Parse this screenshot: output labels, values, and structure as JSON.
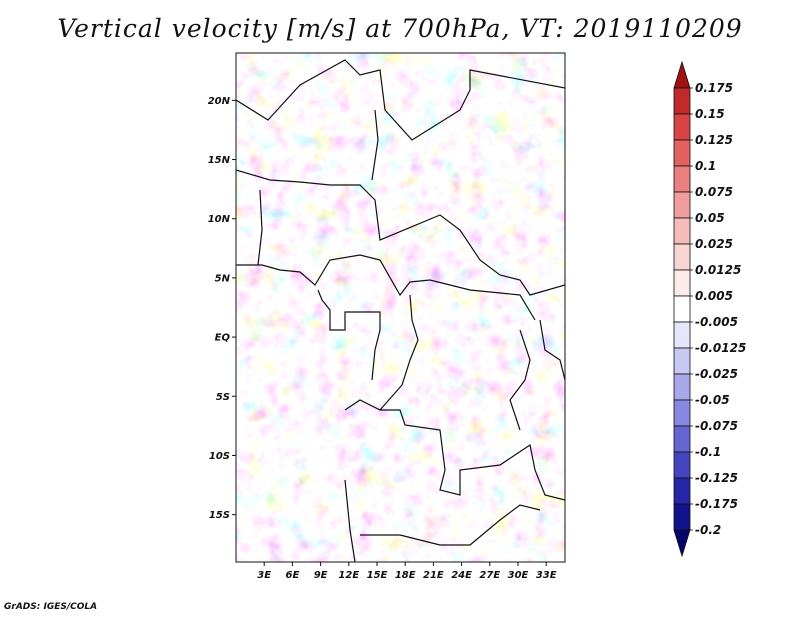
{
  "title": "Vertical velocity [m/s] at 700hPa, VT: 2019110209",
  "credit": "GrADS: IGES/COLA",
  "map": {
    "lon_range": [
      0,
      35
    ],
    "lat_range": [
      -19,
      24
    ],
    "lat_ticks": [
      {
        "value": 20,
        "label": "20N"
      },
      {
        "value": 15,
        "label": "15N"
      },
      {
        "value": 10,
        "label": "10N"
      },
      {
        "value": 5,
        "label": "5N"
      },
      {
        "value": 0,
        "label": "EQ"
      },
      {
        "value": -5,
        "label": "5S"
      },
      {
        "value": -10,
        "label": "10S"
      },
      {
        "value": -15,
        "label": "15S"
      }
    ],
    "lon_ticks": [
      {
        "value": 3,
        "label": "3E"
      },
      {
        "value": 6,
        "label": "6E"
      },
      {
        "value": 9,
        "label": "9E"
      },
      {
        "value": 12,
        "label": "12E"
      },
      {
        "value": 15,
        "label": "15E"
      },
      {
        "value": 18,
        "label": "18E"
      },
      {
        "value": 21,
        "label": "21E"
      },
      {
        "value": 24,
        "label": "24E"
      },
      {
        "value": 27,
        "label": "27E"
      },
      {
        "value": 30,
        "label": "30E"
      },
      {
        "value": 33,
        "label": "33E"
      }
    ]
  },
  "colorbar": {
    "levels": [
      "0.175",
      "0.15",
      "0.125",
      "0.1",
      "0.075",
      "0.05",
      "0.025",
      "0.0125",
      "0.005",
      "-0.005",
      "-0.0125",
      "-0.025",
      "-0.05",
      "-0.075",
      "-0.1",
      "-0.125",
      "-0.175",
      "-0.2"
    ],
    "colors": [
      "#a01010",
      "#c02a2a",
      "#d84444",
      "#e26060",
      "#ea7f7f",
      "#f09d9d",
      "#f5bcbc",
      "#f9d6d6",
      "#fcebeb",
      "#ffffff",
      "#e6e6fa",
      "#c8c8f2",
      "#a9a9ea",
      "#8888e0",
      "#6666d2",
      "#4444c0",
      "#2626a8",
      "#12128a",
      "#05056a"
    ]
  }
}
